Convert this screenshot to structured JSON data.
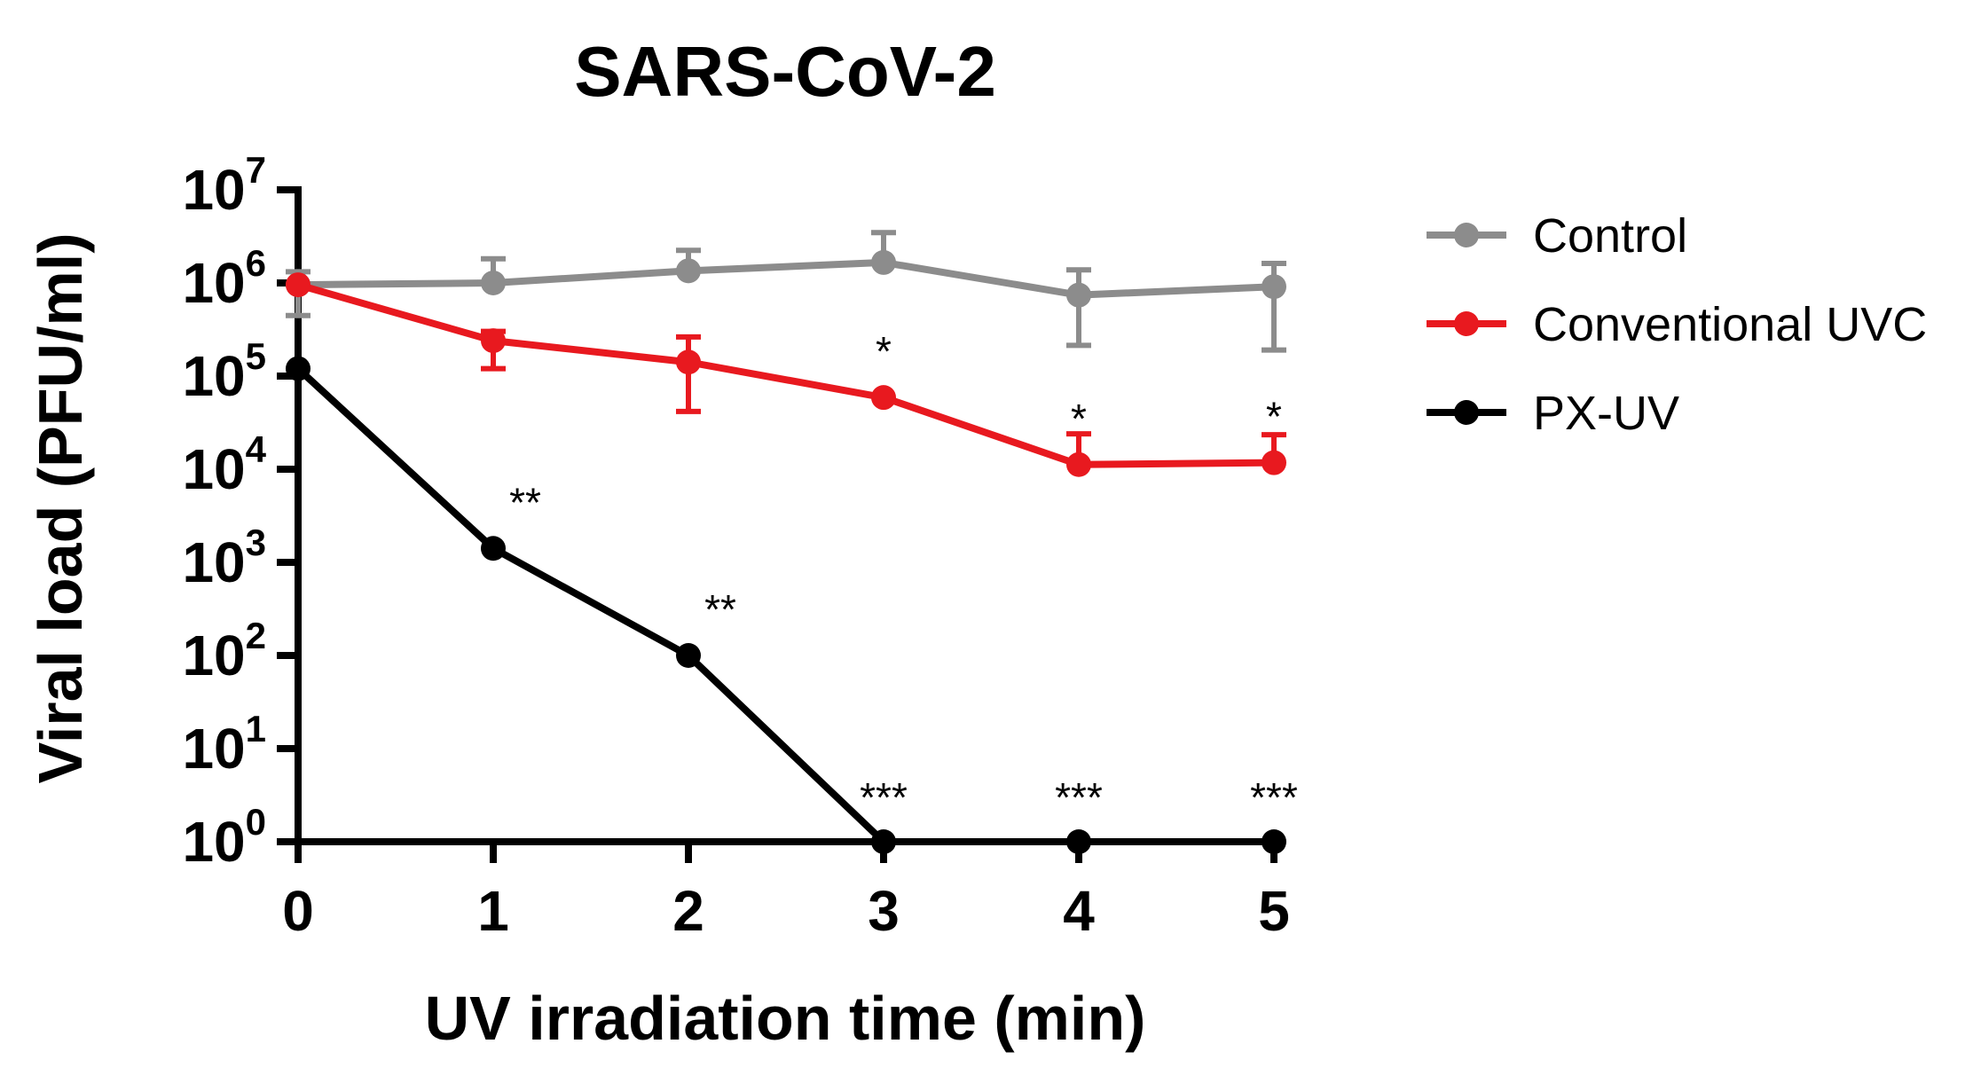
{
  "chart_data": {
    "type": "line",
    "title": "SARS-CoV-2",
    "xlabel": "UV irradiation time (min)",
    "ylabel": "Viral load (PFU/ml)",
    "yscale": "log10",
    "x": [
      0,
      1,
      2,
      3,
      4,
      5
    ],
    "xticks": [
      "0",
      "1",
      "2",
      "3",
      "4",
      "5"
    ],
    "xlim": [
      0,
      5
    ],
    "ylim_exponent": [
      0,
      7
    ],
    "yticks": [
      {
        "base": "10",
        "exp": "0"
      },
      {
        "base": "10",
        "exp": "1"
      },
      {
        "base": "10",
        "exp": "2"
      },
      {
        "base": "10",
        "exp": "3"
      },
      {
        "base": "10",
        "exp": "4"
      },
      {
        "base": "10",
        "exp": "5"
      },
      {
        "base": "10",
        "exp": "6"
      },
      {
        "base": "10",
        "exp": "7"
      }
    ],
    "legend_position": "right",
    "series": [
      {
        "name": "Control",
        "color": "#8c8c8c",
        "log10_values": [
          5.98,
          6.0,
          6.13,
          6.22,
          5.87,
          5.96
        ],
        "error_upper": [
          6.12,
          6.26,
          6.35,
          6.54,
          6.14,
          6.21
        ],
        "error_lower": [
          5.65,
          null,
          null,
          null,
          5.33,
          5.28
        ],
        "annotations": [
          "",
          "",
          "",
          "",
          "",
          ""
        ]
      },
      {
        "name": "Conventional UVC",
        "color": "#e8191f",
        "log10_values": [
          5.98,
          5.38,
          5.15,
          4.77,
          4.05,
          4.07
        ],
        "error_upper": [
          null,
          5.48,
          5.42,
          null,
          4.38,
          4.37
        ],
        "error_lower": [
          null,
          5.08,
          4.62,
          null,
          null,
          null
        ],
        "annotations": [
          "",
          "",
          "",
          "*",
          "*",
          "*"
        ]
      },
      {
        "name": "PX-UV",
        "color": "#000000",
        "log10_values": [
          5.08,
          3.15,
          2.0,
          0.0,
          0.0,
          0.0
        ],
        "error_upper": [
          null,
          null,
          null,
          null,
          null,
          null
        ],
        "error_lower": [
          null,
          null,
          null,
          null,
          null,
          null
        ],
        "annotations": [
          "",
          "**",
          "**",
          "***",
          "***",
          "***"
        ]
      }
    ]
  }
}
